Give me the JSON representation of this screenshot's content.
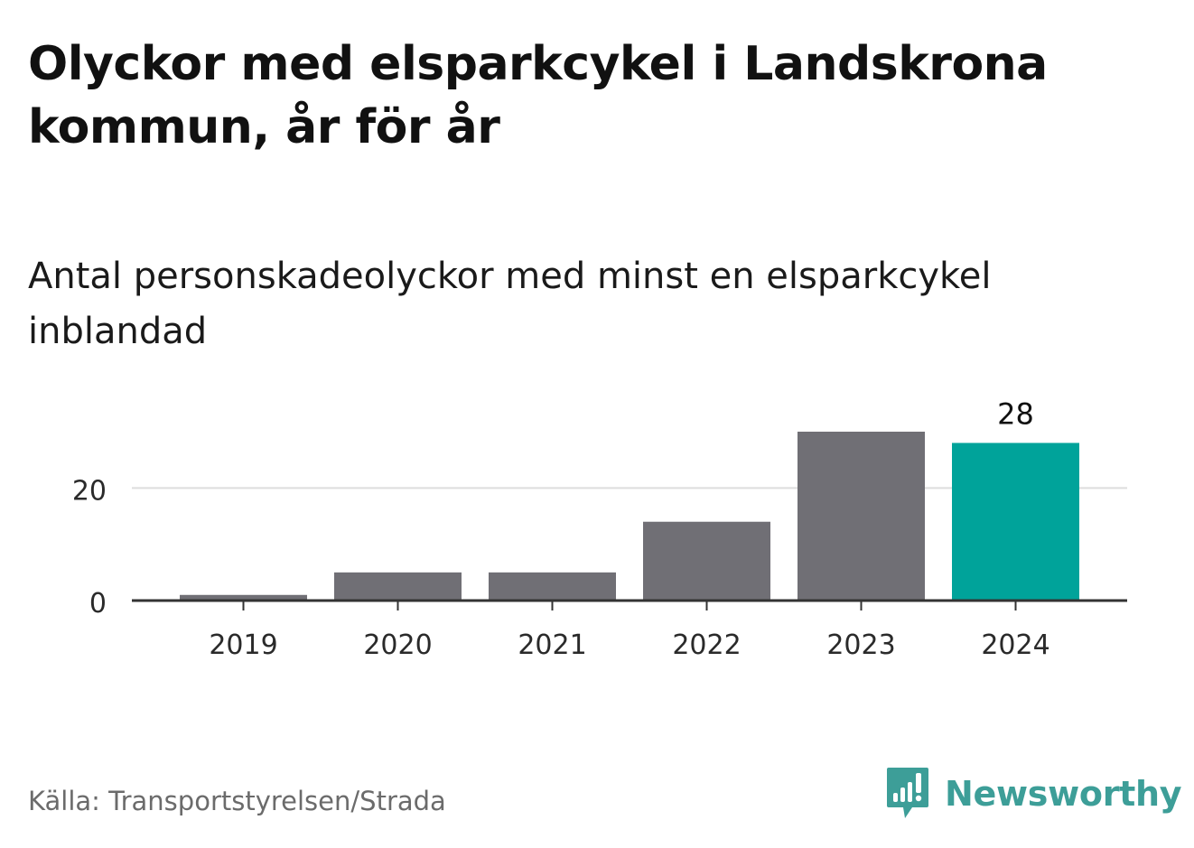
{
  "header": {
    "title": "Olyckor med elsparkcykel i Landskrona kommun, år för år",
    "subtitle": "Antal personskadeolyckor med minst en elsparkcykel inblandad"
  },
  "chart_data": {
    "type": "bar",
    "categories": [
      "2019",
      "2020",
      "2021",
      "2022",
      "2023",
      "2024"
    ],
    "values": [
      1,
      5,
      5,
      14,
      30,
      28
    ],
    "ylim": [
      0,
      30
    ],
    "yticks": [
      "0",
      "20"
    ],
    "ytick_values": [
      0,
      20
    ],
    "data_labels": [
      {
        "index": 5,
        "text": "28"
      }
    ],
    "highlight_index": 5,
    "colors": {
      "bar": "#706f75",
      "highlight": "#00a39a",
      "grid": "#dddddd",
      "axis": "#333333",
      "tick_text": "#2a2a2a"
    },
    "grid": true,
    "legend": "none"
  },
  "footer": {
    "source": "Källa: Transportstyrelsen/Strada",
    "brand": "Newsworthy",
    "brand_icon": "newsworthy-logo-icon"
  },
  "colors": {
    "brand": "#3d9e98",
    "text": "#111111",
    "muted": "#6b6b6b"
  }
}
